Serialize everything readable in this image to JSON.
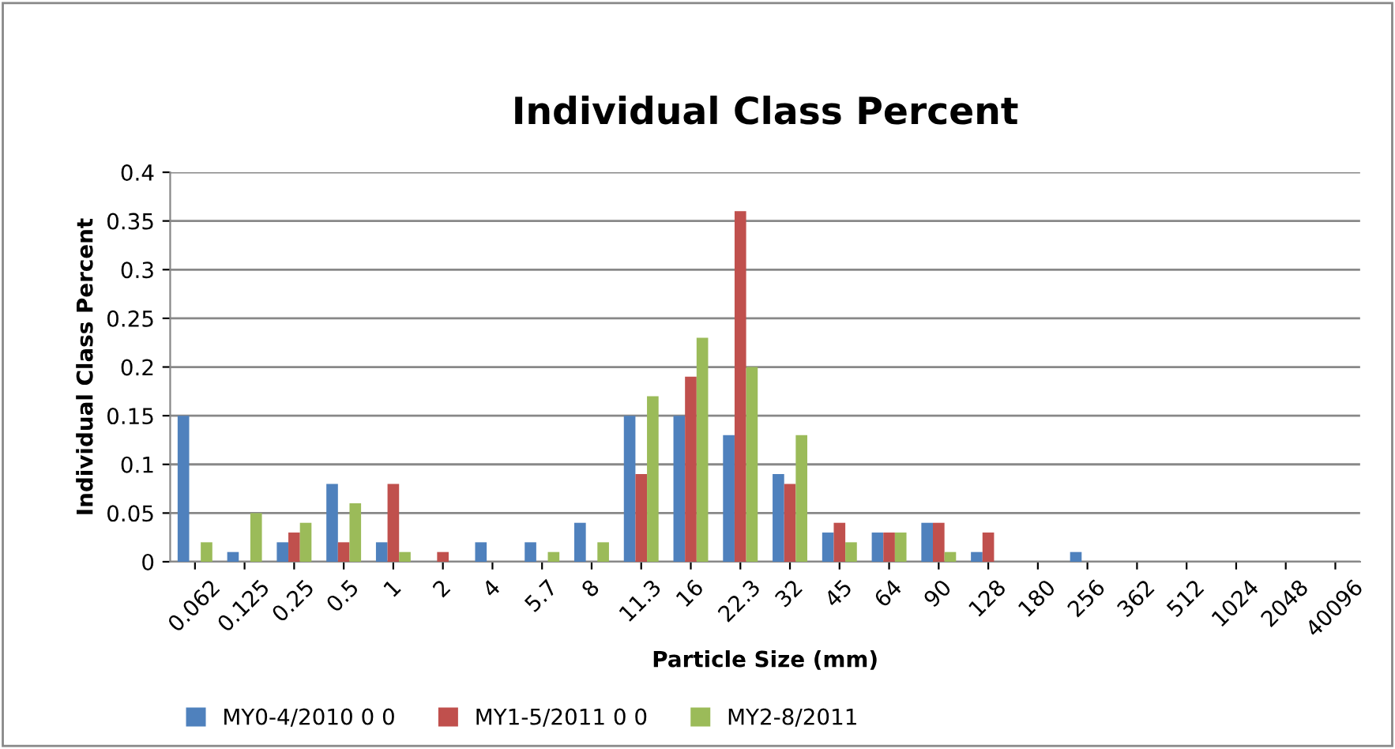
{
  "chart_data": {
    "type": "bar",
    "title": "Individual Class Percent",
    "xlabel": "Particle Size (mm)",
    "ylabel": "Individual Class Percent",
    "categories": [
      "0.062",
      "0.125",
      "0.25",
      "0.5",
      "1",
      "2",
      "4",
      "5.7",
      "8",
      "11.3",
      "16",
      "22.3",
      "32",
      "45",
      "64",
      "90",
      "128",
      "180",
      "256",
      "362",
      "512",
      "1024",
      "2048",
      "40096"
    ],
    "series": [
      {
        "name": "MY0-4/2010 0 0",
        "color": "#4f81bd",
        "values": [
          0.15,
          0.01,
          0.02,
          0.08,
          0.02,
          0,
          0.02,
          0.02,
          0.04,
          0.15,
          0.15,
          0.13,
          0.09,
          0.03,
          0.03,
          0.04,
          0.01,
          0,
          0.01,
          0,
          0,
          0,
          0,
          0
        ]
      },
      {
        "name": "MY1-5/2011 0 0",
        "color": "#c0504d",
        "values": [
          0,
          0,
          0.03,
          0.02,
          0.08,
          0.01,
          0,
          0,
          0,
          0.09,
          0.19,
          0.36,
          0.08,
          0.04,
          0.03,
          0.04,
          0.03,
          0,
          0,
          0,
          0,
          0,
          0,
          0
        ]
      },
      {
        "name": "MY2-8/2011",
        "color": "#9bbb59",
        "values": [
          0.02,
          0.05,
          0.04,
          0.06,
          0.01,
          0,
          0,
          0.01,
          0.02,
          0.17,
          0.23,
          0.2,
          0.13,
          0.02,
          0.03,
          0.01,
          0,
          0,
          0,
          0,
          0,
          0,
          0,
          0
        ]
      }
    ],
    "ylim": [
      0,
      0.4
    ],
    "yticks": [
      0,
      0.05,
      0.1,
      0.15,
      0.2,
      0.25,
      0.3,
      0.35,
      0.4
    ],
    "grid": "y",
    "legend": "bottom"
  }
}
